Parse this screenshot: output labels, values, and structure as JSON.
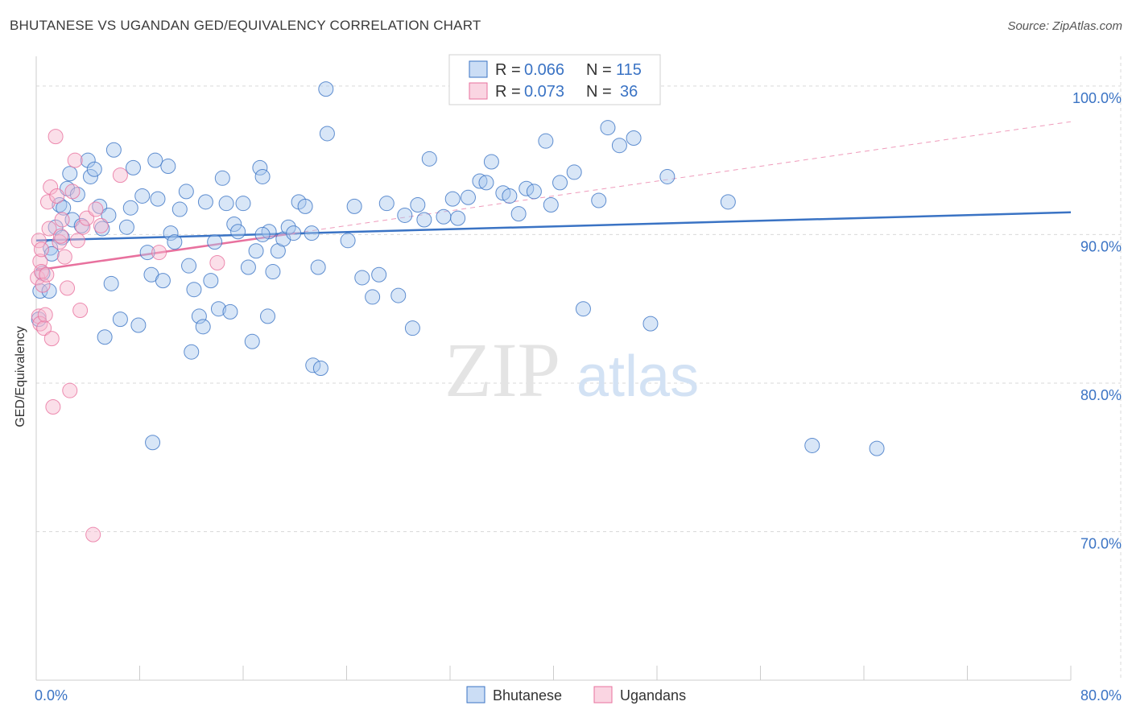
{
  "title": "BHUTANESE VS UGANDAN GED/EQUIVALENCY CORRELATION CHART",
  "source": "Source: ZipAtlas.com",
  "colors": {
    "blue": "#3a73c4",
    "blue_fill": "#a9c7ee",
    "pink": "#e8719e",
    "pink_fill": "#f6b9cf",
    "grid": "#d9d9d9",
    "tick_label": "#3a73c4"
  },
  "watermark": {
    "zip": "ZIP",
    "atlas": "atlas"
  },
  "legend": {
    "rows": [
      {
        "r_label": "R =",
        "r_value": "0.066",
        "n_label": "N =",
        "n_value": "115"
      },
      {
        "r_label": "R =",
        "r_value": "0.073",
        "n_label": "N =",
        "n_value": "36"
      }
    ]
  },
  "bottom_legend": [
    "Bhutanese",
    "Ugandans"
  ],
  "chart_data": {
    "type": "scatter",
    "title": "BHUTANESE VS UGANDAN GED/EQUIVALENCY CORRELATION CHART",
    "xlabel": "",
    "ylabel": "GED/Equivalency",
    "xlim": [
      0,
      80
    ],
    "ylim": [
      60,
      102
    ],
    "x_tick_labels": [
      "0.0%",
      "80.0%"
    ],
    "y_ticks": [
      70,
      80,
      90,
      100
    ],
    "y_tick_labels": [
      "70.0%",
      "80.0%",
      "90.0%",
      "100.0%"
    ],
    "grid": true,
    "legend_position": "top-center",
    "series": [
      {
        "name": "Bhutanese",
        "r": 0.066,
        "n": 115,
        "trend": {
          "x": [
            0,
            80
          ],
          "y": [
            89.6,
            91.5
          ],
          "style": "solid"
        },
        "points": [
          [
            0.2,
            84.3
          ],
          [
            0.3,
            86.2
          ],
          [
            0.5,
            87.4
          ],
          [
            1.1,
            89.1
          ],
          [
            1.5,
            90.5
          ],
          [
            1.8,
            92.0
          ],
          [
            2.1,
            91.8
          ],
          [
            2.4,
            93.1
          ],
          [
            2.6,
            94.1
          ],
          [
            2.8,
            91.0
          ],
          [
            3.2,
            92.7
          ],
          [
            3.5,
            90.6
          ],
          [
            4.0,
            95.0
          ],
          [
            4.2,
            93.9
          ],
          [
            4.5,
            94.4
          ],
          [
            4.9,
            91.9
          ],
          [
            5.1,
            90.4
          ],
          [
            5.3,
            83.1
          ],
          [
            5.6,
            91.3
          ],
          [
            5.8,
            86.7
          ],
          [
            6.0,
            95.7
          ],
          [
            6.5,
            84.3
          ],
          [
            7.0,
            90.5
          ],
          [
            7.3,
            91.8
          ],
          [
            7.5,
            94.5
          ],
          [
            7.9,
            83.9
          ],
          [
            8.2,
            92.6
          ],
          [
            8.6,
            88.8
          ],
          [
            8.9,
            87.3
          ],
          [
            9.2,
            95.0
          ],
          [
            9.4,
            92.4
          ],
          [
            9.8,
            86.9
          ],
          [
            10.2,
            94.6
          ],
          [
            10.4,
            90.1
          ],
          [
            10.7,
            89.5
          ],
          [
            11.1,
            91.7
          ],
          [
            11.6,
            92.9
          ],
          [
            11.8,
            87.9
          ],
          [
            12.2,
            86.3
          ],
          [
            12.6,
            84.5
          ],
          [
            12.9,
            83.8
          ],
          [
            13.1,
            92.2
          ],
          [
            13.5,
            86.9
          ],
          [
            13.8,
            89.5
          ],
          [
            14.1,
            85.0
          ],
          [
            14.4,
            93.8
          ],
          [
            14.7,
            92.1
          ],
          [
            15.0,
            84.8
          ],
          [
            15.3,
            90.7
          ],
          [
            15.6,
            90.2
          ],
          [
            16.0,
            92.1
          ],
          [
            16.4,
            87.8
          ],
          [
            16.7,
            82.8
          ],
          [
            17.0,
            88.9
          ],
          [
            17.3,
            94.5
          ],
          [
            17.5,
            93.9
          ],
          [
            17.9,
            84.5
          ],
          [
            18.3,
            87.5
          ],
          [
            18.7,
            88.9
          ],
          [
            19.1,
            89.7
          ],
          [
            19.5,
            90.5
          ],
          [
            19.9,
            90.1
          ],
          [
            20.3,
            92.2
          ],
          [
            20.8,
            91.9
          ],
          [
            21.3,
            90.1
          ],
          [
            21.4,
            81.2
          ],
          [
            21.8,
            87.8
          ],
          [
            22.4,
            99.8
          ],
          [
            22.5,
            96.8
          ],
          [
            24.1,
            89.6
          ],
          [
            24.6,
            91.9
          ],
          [
            25.2,
            87.1
          ],
          [
            26.0,
            85.8
          ],
          [
            26.5,
            87.3
          ],
          [
            27.1,
            92.1
          ],
          [
            28.0,
            85.9
          ],
          [
            28.5,
            91.3
          ],
          [
            29.1,
            83.7
          ],
          [
            29.5,
            92.0
          ],
          [
            30.0,
            91.0
          ],
          [
            30.4,
            95.1
          ],
          [
            31.5,
            91.2
          ],
          [
            32.2,
            92.4
          ],
          [
            32.6,
            91.1
          ],
          [
            33.4,
            92.5
          ],
          [
            34.3,
            93.6
          ],
          [
            34.8,
            93.5
          ],
          [
            35.2,
            94.9
          ],
          [
            36.1,
            92.8
          ],
          [
            36.6,
            92.6
          ],
          [
            37.3,
            91.4
          ],
          [
            37.9,
            93.1
          ],
          [
            38.5,
            92.9
          ],
          [
            39.4,
            96.3
          ],
          [
            39.8,
            92.0
          ],
          [
            40.5,
            93.5
          ],
          [
            41.6,
            94.2
          ],
          [
            42.3,
            85.0
          ],
          [
            43.5,
            92.3
          ],
          [
            44.2,
            97.2
          ],
          [
            45.1,
            96.0
          ],
          [
            46.2,
            96.5
          ],
          [
            47.5,
            84.0
          ],
          [
            48.8,
            93.9
          ],
          [
            53.5,
            92.2
          ],
          [
            60.0,
            75.8
          ],
          [
            65.0,
            75.6
          ],
          [
            1.0,
            86.2
          ],
          [
            2.0,
            89.8
          ],
          [
            1.2,
            88.7
          ],
          [
            9.0,
            76.0
          ],
          [
            12.0,
            82.1
          ],
          [
            22.0,
            81.0
          ],
          [
            18.0,
            90.2
          ],
          [
            17.5,
            90.0
          ]
        ]
      },
      {
        "name": "Ugandans",
        "r": 0.073,
        "n": 36,
        "trend": {
          "x": [
            0,
            20
          ],
          "y": [
            87.6,
            90.1
          ],
          "style": "solid",
          "extended": {
            "x": [
              20,
              80
            ],
            "y": [
              90.1,
              97.6
            ],
            "style": "dashed"
          }
        },
        "points": [
          [
            0.1,
            87.1
          ],
          [
            0.2,
            84.5
          ],
          [
            0.2,
            89.6
          ],
          [
            0.3,
            84.0
          ],
          [
            0.3,
            88.2
          ],
          [
            0.4,
            87.5
          ],
          [
            0.5,
            86.6
          ],
          [
            0.6,
            83.7
          ],
          [
            0.8,
            87.3
          ],
          [
            0.9,
            92.2
          ],
          [
            1.0,
            90.4
          ],
          [
            1.1,
            93.2
          ],
          [
            1.2,
            83.0
          ],
          [
            1.3,
            78.4
          ],
          [
            1.5,
            96.6
          ],
          [
            1.6,
            92.6
          ],
          [
            1.8,
            89.5
          ],
          [
            2.0,
            91.0
          ],
          [
            2.2,
            88.5
          ],
          [
            2.4,
            86.4
          ],
          [
            2.6,
            79.5
          ],
          [
            2.8,
            92.9
          ],
          [
            3.0,
            95.0
          ],
          [
            3.2,
            89.6
          ],
          [
            3.4,
            84.9
          ],
          [
            3.6,
            90.5
          ],
          [
            3.9,
            91.1
          ],
          [
            4.4,
            69.8
          ],
          [
            4.6,
            91.7
          ],
          [
            5.0,
            90.6
          ],
          [
            6.5,
            94.0
          ],
          [
            9.5,
            88.8
          ],
          [
            14.0,
            88.1
          ],
          [
            0.4,
            89.0
          ],
          [
            0.7,
            84.6
          ],
          [
            1.9,
            89.9
          ]
        ]
      }
    ]
  }
}
